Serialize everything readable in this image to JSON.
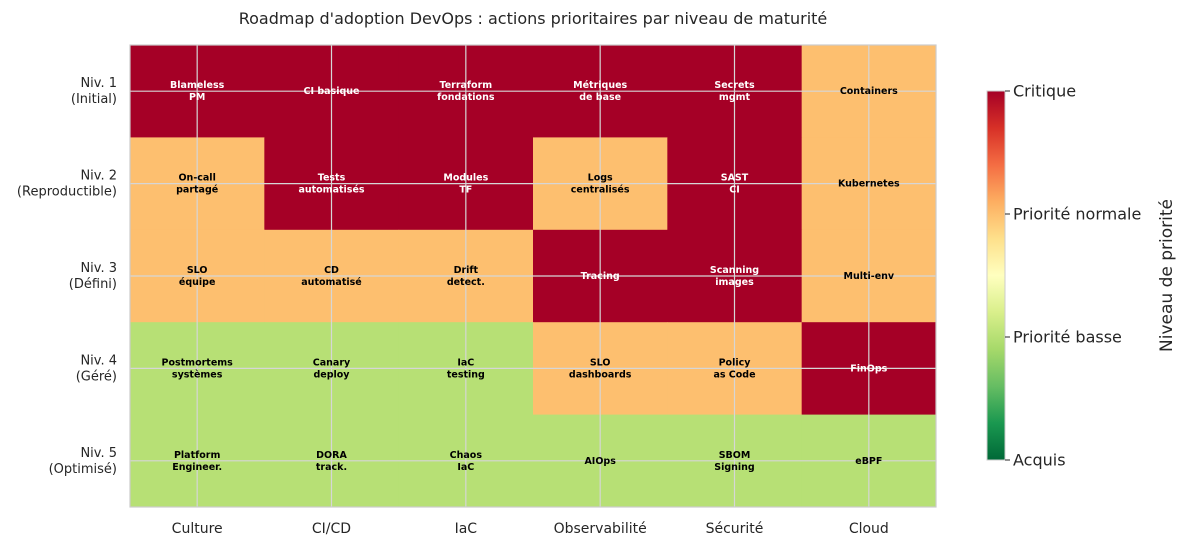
{
  "chart_data": {
    "type": "heatmap",
    "title": "Roadmap d'adoption DevOps : actions prioritaires par niveau de maturité",
    "columns": [
      "Culture",
      "CI/CD",
      "IaC",
      "Observabilité",
      "Sécurité",
      "Cloud"
    ],
    "rows": [
      "Niv. 1\n(Initial)",
      "Niv. 2\n(Reproductible)",
      "Niv. 3\n(Défini)",
      "Niv. 4\n(Géré)",
      "Niv. 5\n(Optimisé)"
    ],
    "values": [
      [
        3,
        3,
        3,
        3,
        3,
        2
      ],
      [
        2,
        3,
        3,
        2,
        3,
        2
      ],
      [
        2,
        2,
        2,
        3,
        3,
        2
      ],
      [
        1,
        1,
        1,
        2,
        2,
        3
      ],
      [
        1,
        1,
        1,
        1,
        1,
        1
      ]
    ],
    "labels": [
      [
        "Blameless\nPM",
        "CI basique",
        "Terraform\nfondations",
        "Métriques\nde base",
        "Secrets\nmgmt",
        "Containers"
      ],
      [
        "On-call\npartagé",
        "Tests\nautomatisés",
        "Modules\nTF",
        "Logs\ncentralisés",
        "SAST\nCI",
        "Kubernetes"
      ],
      [
        "SLO\néquipe",
        "CD\nautomatisé",
        "Drift\ndetect.",
        "Tracing",
        "Scanning\nimages",
        "Multi-env"
      ],
      [
        "Postmortems\nsystèmes",
        "Canary\ndeploy",
        "IaC\ntesting",
        "SLO\ndashboards",
        "Policy\nas Code",
        "FinOps"
      ],
      [
        "Platform\nEngineer.",
        "DORA\ntrack.",
        "Chaos\nIaC",
        "AIOps",
        "SBOM\nSigning",
        "eBPF"
      ]
    ],
    "colorbar": {
      "label": "Niveau de priorité",
      "range": [
        0,
        3
      ],
      "ticks": [
        0,
        1,
        2,
        3
      ],
      "tick_labels": [
        "Acquis",
        "Priorité basse",
        "Priorité normale",
        "Critique"
      ],
      "colormap": "RdYlGn_r"
    },
    "level_colors": {
      "0": "#006837",
      "1": "#b7e075",
      "2": "#fdbf6f",
      "3": "#a50026"
    },
    "text_colors": {
      "dark_cell": "#ffffff",
      "light_cell": "#000000"
    },
    "grid": true
  }
}
